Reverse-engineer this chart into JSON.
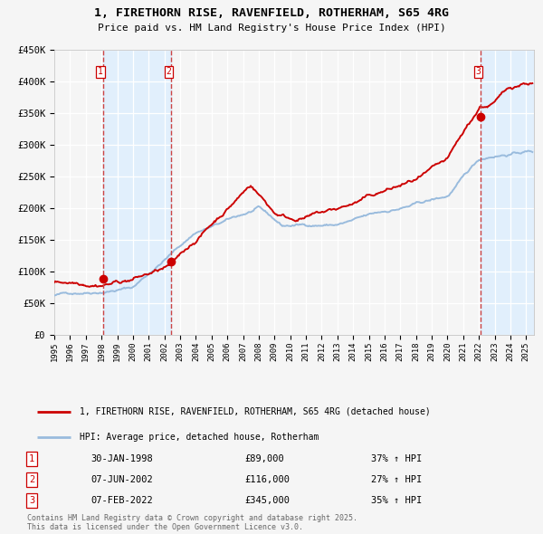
{
  "title_line1": "1, FIRETHORN RISE, RAVENFIELD, ROTHERHAM, S65 4RG",
  "title_line2": "Price paid vs. HM Land Registry's House Price Index (HPI)",
  "legend_label1": "1, FIRETHORN RISE, RAVENFIELD, ROTHERHAM, S65 4RG (detached house)",
  "legend_label2": "HPI: Average price, detached house, Rotherham",
  "line1_color": "#cc0000",
  "line2_color": "#99bbdd",
  "marker_color": "#cc0000",
  "vline_color": "#cc4444",
  "shade_color": "#ddeeff",
  "transaction_dates": [
    1998.08,
    2002.44,
    2022.1
  ],
  "transaction_values": [
    89000,
    116000,
    345000
  ],
  "annotations": [
    {
      "num": "1",
      "date": "30-JAN-1998",
      "price": "£89,000",
      "hpi": "37% ↑ HPI"
    },
    {
      "num": "2",
      "date": "07-JUN-2002",
      "price": "£116,000",
      "hpi": "27% ↑ HPI"
    },
    {
      "num": "3",
      "date": "07-FEB-2022",
      "price": "£345,000",
      "hpi": "35% ↑ HPI"
    }
  ],
  "footer": "Contains HM Land Registry data © Crown copyright and database right 2025.\nThis data is licensed under the Open Government Licence v3.0.",
  "ylim": [
    0,
    450000
  ],
  "xlim": [
    1995.0,
    2025.5
  ],
  "yticks": [
    0,
    50000,
    100000,
    150000,
    200000,
    250000,
    300000,
    350000,
    400000,
    450000
  ],
  "ytick_labels": [
    "£0",
    "£50K",
    "£100K",
    "£150K",
    "£200K",
    "£250K",
    "£300K",
    "£350K",
    "£400K",
    "£450K"
  ],
  "background_color": "#f5f5f5",
  "plot_bg_color": "#f5f5f5",
  "grid_color": "#ffffff"
}
